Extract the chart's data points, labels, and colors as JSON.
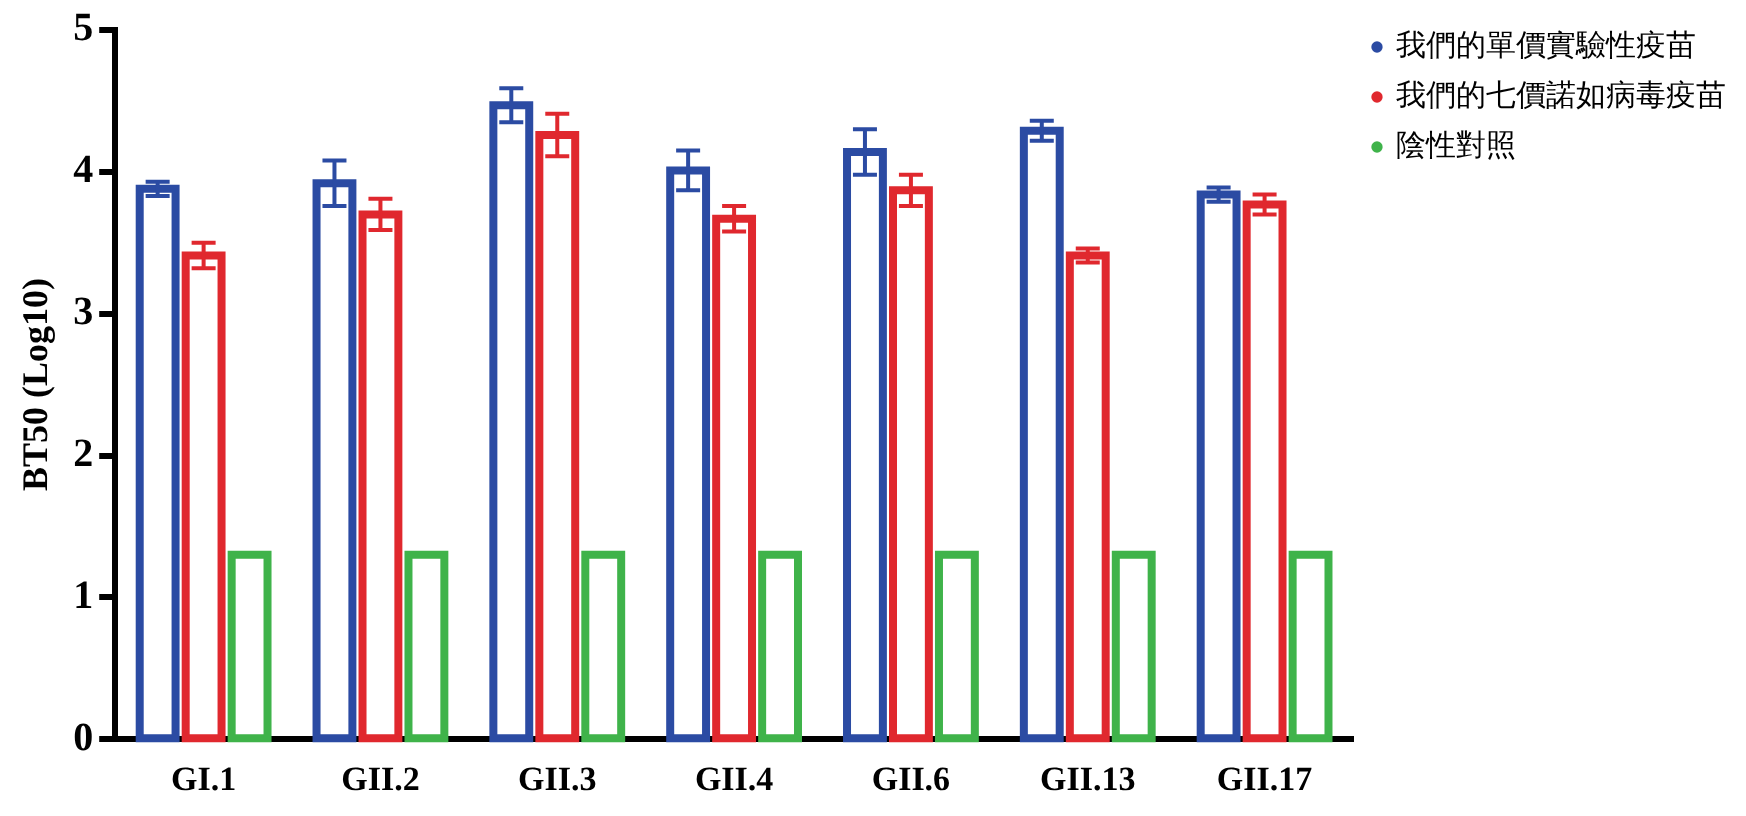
{
  "chart_data": {
    "type": "bar",
    "ylabel": "BT50 (Log10)",
    "categories": [
      "GI.1",
      "GII.2",
      "GII.3",
      "GII.4",
      "GII.6",
      "GII.13",
      "GII.17"
    ],
    "series": [
      {
        "name": "我們的單價實驗性疫苗",
        "color": "#2b4ba3",
        "values": [
          3.88,
          3.92,
          4.47,
          4.01,
          4.14,
          4.29,
          3.84
        ],
        "errors": [
          0.05,
          0.16,
          0.12,
          0.14,
          0.16,
          0.07,
          0.05
        ]
      },
      {
        "name": "我們的七價諾如病毒疫苗",
        "color": "#e0282e",
        "values": [
          3.41,
          3.7,
          4.26,
          3.67,
          3.87,
          3.41,
          3.77
        ],
        "errors": [
          0.09,
          0.11,
          0.15,
          0.09,
          0.11,
          0.05,
          0.07
        ]
      },
      {
        "name": "陰性對照",
        "color": "#3fb34a",
        "values": [
          1.3,
          1.3,
          1.3,
          1.3,
          1.3,
          1.3,
          1.3
        ]
      }
    ],
    "ylim": [
      0,
      5
    ],
    "yticks": [
      0,
      1,
      2,
      3,
      4,
      5
    ],
    "grid": false,
    "legend": "top right"
  }
}
